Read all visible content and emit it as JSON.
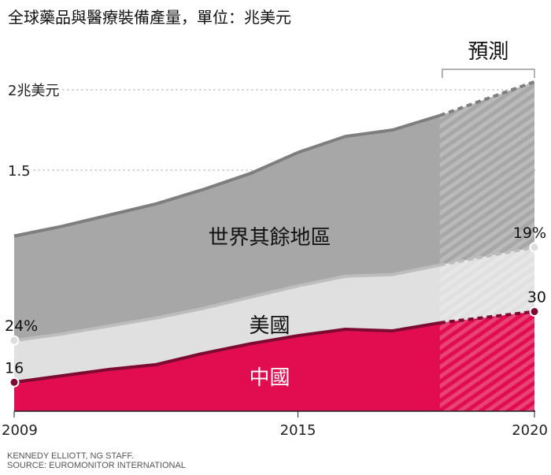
{
  "chart_data": {
    "type": "area",
    "stacked": true,
    "title": "全球藥品與醫療裝備產量，單位：兆美元",
    "x": [
      2009,
      2010,
      2011,
      2012,
      2013,
      2014,
      2015,
      2016,
      2017,
      2018,
      2020
    ],
    "xticks": [
      "2009",
      "2015",
      "2020"
    ],
    "yticks": [
      {
        "value": 1.5,
        "label": "1.5"
      },
      {
        "value": 2,
        "label": "2兆美元"
      }
    ],
    "ylim": [
      0,
      2
    ],
    "forecast": {
      "label": "預測",
      "from": 2018,
      "to": 2020
    },
    "series": [
      {
        "name": "中國",
        "color": "#e10d50",
        "line": "#7d0a30",
        "values": [
          0.18,
          0.22,
          0.26,
          0.29,
          0.36,
          0.42,
          0.47,
          0.51,
          0.5,
          0.55,
          0.62
        ]
      },
      {
        "name": "美國",
        "color": "#e0e0e0",
        "line": "#bdbdbd",
        "values": [
          0.26,
          0.26,
          0.27,
          0.29,
          0.28,
          0.29,
          0.31,
          0.33,
          0.35,
          0.36,
          0.4
        ]
      },
      {
        "name": "世界其餘地區",
        "color": "#a7a7a7",
        "line": "#7e7e7e",
        "values": [
          0.65,
          0.67,
          0.69,
          0.71,
          0.74,
          0.77,
          0.83,
          0.87,
          0.9,
          0.93,
          1.03
        ]
      }
    ],
    "annotations": [
      {
        "series": "中國",
        "year": 2009,
        "text": "16"
      },
      {
        "series": "中國",
        "year": 2020,
        "text": "30"
      },
      {
        "series": "美國",
        "year": 2009,
        "text": "24%"
      },
      {
        "series": "美國",
        "year": 2020,
        "text": "19%"
      }
    ]
  },
  "credits": {
    "line1": "KENNEDY ELLIOTT, NG STAFF.",
    "line2": "SOURCE: EUROMONITOR INTERNATIONAL"
  }
}
